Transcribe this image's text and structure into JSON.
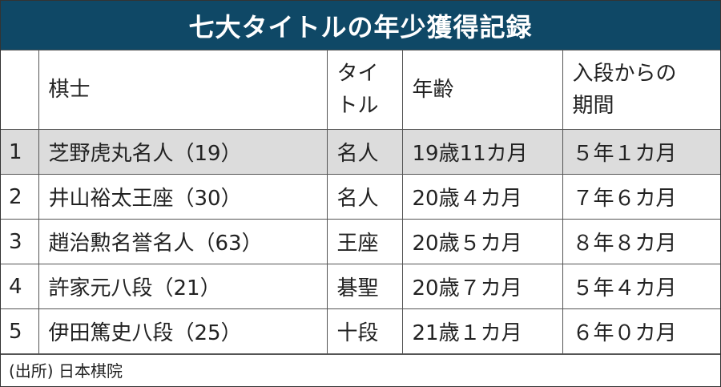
{
  "title": "七大タイトルの年少獲得記録",
  "headers": {
    "rank": "",
    "player": "棋士",
    "title_line1": "タイ",
    "title_line2": "トル",
    "age": "年齢",
    "period_line1": "入段からの",
    "period_line2": "期間"
  },
  "rows": [
    {
      "rank": "1",
      "player": "芝野虎丸名人（19）",
      "title": "名人",
      "age": "19歳11カ月",
      "period": "５年１カ月",
      "highlight": true
    },
    {
      "rank": "2",
      "player": "井山裕太王座（30）",
      "title": "名人",
      "age": "20歳４カ月",
      "period": "７年６カ月"
    },
    {
      "rank": "3",
      "player": "趙治勲名誉名人（63）",
      "title": "王座",
      "age": "20歳５カ月",
      "period": "８年８カ月"
    },
    {
      "rank": "4",
      "player": "許家元八段（21）",
      "title": "碁聖",
      "age": "20歳７カ月",
      "period": "５年４カ月"
    },
    {
      "rank": "5",
      "player": "伊田篤史八段（25）",
      "title": "十段",
      "age": "21歳１カ月",
      "period": "６年０カ月"
    }
  ],
  "source": "(出所) 日本棋院",
  "colors": {
    "header_bg": "#0f4866",
    "highlight_row": "#dcdcdc"
  }
}
